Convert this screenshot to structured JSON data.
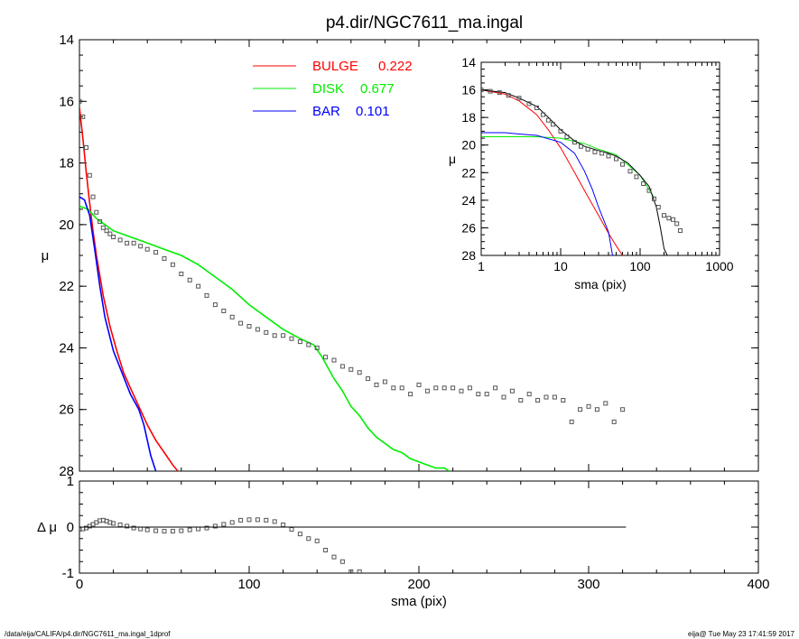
{
  "title": "p4.dir/NGC7611_ma.ingal",
  "footer": {
    "left": "/data/eija/CALIFA/p4.dir/NGC7611_ma.ingal_1dprof",
    "right": "eija@  Tue May 23 17:41:59 2017"
  },
  "colors": {
    "bulge": "#ff0000",
    "disk": "#00ee00",
    "bar": "#0000ff",
    "axes": "#000000",
    "points": "#555555"
  },
  "legend": [
    {
      "label": "BULGE",
      "value": "0.222",
      "color": "#ff0000"
    },
    {
      "label": "DISK",
      "value": "0.677",
      "color": "#00ee00"
    },
    {
      "label": "BAR",
      "value": "0.101",
      "color": "#0000ff"
    }
  ],
  "chart_data": [
    {
      "id": "main",
      "type": "line",
      "xlabel": "",
      "ylabel": "μ",
      "xlim": [
        0,
        400
      ],
      "ylim": [
        28,
        14
      ],
      "x_ticks": [
        "0",
        "100",
        "200",
        "300",
        "400"
      ],
      "y_ticks": [
        "14",
        "16",
        "18",
        "20",
        "22",
        "24",
        "26",
        "28"
      ],
      "series": [
        {
          "name": "BULGE",
          "color": "#ff0000",
          "x": [
            0,
            2,
            4,
            6,
            8,
            10,
            14,
            18,
            22,
            26,
            30,
            35,
            40,
            45,
            50,
            55,
            58
          ],
          "y": [
            16.2,
            17.2,
            18.3,
            19.3,
            20.2,
            21,
            22.3,
            23.3,
            24.1,
            24.8,
            25.3,
            25.9,
            26.5,
            27,
            27.4,
            27.8,
            28
          ]
        },
        {
          "name": "DISK",
          "color": "#00ee00",
          "x": [
            0,
            5,
            10,
            20,
            30,
            40,
            50,
            60,
            70,
            80,
            90,
            100,
            110,
            120,
            130,
            138,
            143,
            148,
            150,
            155,
            160,
            165,
            170,
            175,
            180,
            185,
            190,
            195,
            200,
            205,
            210,
            215,
            218
          ],
          "y": [
            19.4,
            19.5,
            19.8,
            20.2,
            20.4,
            20.6,
            20.8,
            21.0,
            21.3,
            21.7,
            22.1,
            22.6,
            23.0,
            23.4,
            23.7,
            23.9,
            24.3,
            24.8,
            25.0,
            25.4,
            25.9,
            26.2,
            26.6,
            26.9,
            27.1,
            27.3,
            27.4,
            27.6,
            27.7,
            27.8,
            27.9,
            27.9,
            28.0
          ]
        },
        {
          "name": "BAR",
          "color": "#0000ff",
          "x": [
            0,
            3,
            6,
            9,
            12,
            15,
            20,
            25,
            30,
            35,
            38,
            40,
            42,
            45
          ],
          "y": [
            19.1,
            19.2,
            19.7,
            20.8,
            22.0,
            23.0,
            24.1,
            24.8,
            25.5,
            26.0,
            26.5,
            27.0,
            27.5,
            28.0
          ]
        }
      ],
      "points": {
        "x": [
          0,
          2,
          4,
          6,
          8,
          10,
          12,
          14,
          16,
          18,
          20,
          24,
          28,
          32,
          36,
          40,
          45,
          50,
          55,
          60,
          65,
          70,
          75,
          80,
          85,
          90,
          95,
          100,
          105,
          110,
          115,
          120,
          125,
          130,
          135,
          140,
          145,
          150,
          155,
          160,
          165,
          170,
          175,
          180,
          185,
          190,
          195,
          200,
          205,
          210,
          215,
          220,
          225,
          230,
          235,
          240,
          245,
          250,
          255,
          260,
          265,
          270,
          275,
          280,
          285,
          290,
          295,
          300,
          305,
          310,
          315,
          320
        ],
        "y": [
          16.0,
          16.5,
          17.5,
          18.4,
          19.1,
          19.6,
          19.9,
          20.1,
          20.2,
          20.3,
          20.4,
          20.5,
          20.6,
          20.6,
          20.7,
          20.8,
          20.9,
          21.1,
          21.3,
          21.6,
          21.8,
          22.0,
          22.3,
          22.6,
          22.8,
          23.0,
          23.2,
          23.3,
          23.4,
          23.5,
          23.6,
          23.6,
          23.7,
          23.8,
          23.9,
          24.0,
          24.3,
          24.4,
          24.6,
          24.7,
          24.8,
          25.0,
          25.2,
          25.1,
          25.3,
          25.3,
          25.5,
          25.2,
          25.4,
          25.3,
          25.3,
          25.3,
          25.4,
          25.3,
          25.5,
          25.5,
          25.3,
          25.6,
          25.4,
          25.7,
          25.5,
          25.7,
          25.6,
          25.6,
          25.7,
          26.4,
          26.0,
          25.9,
          26.0,
          25.8,
          26.4,
          26.0
        ]
      }
    },
    {
      "id": "inset",
      "type": "line",
      "xlabel": "sma (pix)",
      "ylabel": "μ",
      "xscale": "log",
      "xlim": [
        1,
        1000
      ],
      "ylim": [
        28,
        14
      ],
      "x_ticks": [
        "1",
        "10",
        "100",
        "1000"
      ],
      "y_ticks": [
        "14",
        "16",
        "18",
        "20",
        "22",
        "24",
        "26",
        "28"
      ],
      "series": [
        {
          "name": "BULGE",
          "color": "#ff0000",
          "x": [
            1,
            2,
            3,
            5,
            7,
            10,
            15,
            20,
            30,
            40,
            50,
            60
          ],
          "y": [
            16.0,
            16.3,
            16.8,
            17.8,
            18.9,
            20.2,
            22.0,
            23.3,
            25.1,
            26.4,
            27.3,
            28.0
          ]
        },
        {
          "name": "DISK",
          "color": "#00ee00",
          "x": [
            1,
            2,
            3,
            5,
            10,
            20,
            30,
            50,
            100,
            150
          ],
          "y": [
            19.4,
            19.4,
            19.4,
            19.4,
            19.5,
            19.9,
            20.3,
            20.7,
            22.2,
            23.8
          ]
        },
        {
          "name": "BAR",
          "color": "#0000ff",
          "x": [
            1,
            2,
            3,
            5,
            10,
            15,
            20,
            25,
            30,
            40,
            45
          ],
          "y": [
            19.1,
            19.1,
            19.2,
            19.3,
            19.8,
            20.6,
            21.9,
            23.2,
            24.5,
            26.3,
            28.0
          ]
        },
        {
          "name": "",
          "color": "#000000",
          "x": [
            1,
            2,
            3,
            5,
            7,
            10,
            15,
            20,
            30,
            40,
            50,
            70,
            100,
            130,
            160,
            180,
            200,
            220
          ],
          "y": [
            16.0,
            16.2,
            16.6,
            17.2,
            18.0,
            18.9,
            19.7,
            20.1,
            20.4,
            20.6,
            20.8,
            21.3,
            22.2,
            23.0,
            24.5,
            26.0,
            27.5,
            28.0
          ]
        }
      ],
      "points": {
        "x": [
          1,
          1.3,
          1.7,
          2.2,
          3,
          4,
          5,
          6,
          7,
          8,
          10,
          12,
          15,
          18,
          22,
          27,
          33,
          40,
          50,
          60,
          75,
          90,
          110,
          130,
          150,
          170,
          200,
          230,
          260,
          290,
          320
        ],
        "y": [
          16.0,
          16.1,
          16.2,
          16.4,
          16.6,
          17.0,
          17.3,
          17.8,
          18.2,
          18.5,
          19.0,
          19.4,
          19.8,
          20.1,
          20.3,
          20.5,
          20.6,
          20.8,
          21.0,
          21.4,
          21.9,
          22.3,
          22.8,
          23.3,
          23.9,
          24.5,
          25.1,
          25.3,
          25.4,
          25.7,
          26.2
        ]
      }
    },
    {
      "id": "residual",
      "type": "scatter",
      "xlabel": "sma (pix)",
      "ylabel": "Δ μ",
      "xlim": [
        0,
        400
      ],
      "ylim": [
        -1,
        1
      ],
      "x_ticks": [
        "0",
        "100",
        "200",
        "300",
        "400"
      ],
      "y_ticks": [
        "1",
        "0",
        "-1"
      ],
      "zero_line_x": [
        0,
        322
      ],
      "points": {
        "x": [
          0,
          2,
          4,
          6,
          8,
          10,
          12,
          14,
          16,
          18,
          20,
          24,
          28,
          32,
          36,
          40,
          45,
          50,
          55,
          60,
          65,
          70,
          75,
          80,
          85,
          90,
          95,
          100,
          105,
          110,
          115,
          120,
          125,
          130,
          135,
          140,
          145,
          150,
          155,
          160,
          165
        ],
        "y": [
          -0.05,
          -0.04,
          -0.02,
          0.02,
          0.06,
          0.1,
          0.14,
          0.15,
          0.13,
          0.1,
          0.08,
          0.05,
          0.02,
          -0.02,
          -0.04,
          -0.06,
          -0.08,
          -0.09,
          -0.09,
          -0.08,
          -0.06,
          -0.04,
          -0.02,
          0.02,
          0.06,
          0.1,
          0.15,
          0.16,
          0.16,
          0.15,
          0.12,
          0.05,
          -0.05,
          -0.15,
          -0.25,
          -0.3,
          -0.5,
          -0.65,
          -0.75,
          -0.97,
          -0.97
        ]
      }
    }
  ]
}
